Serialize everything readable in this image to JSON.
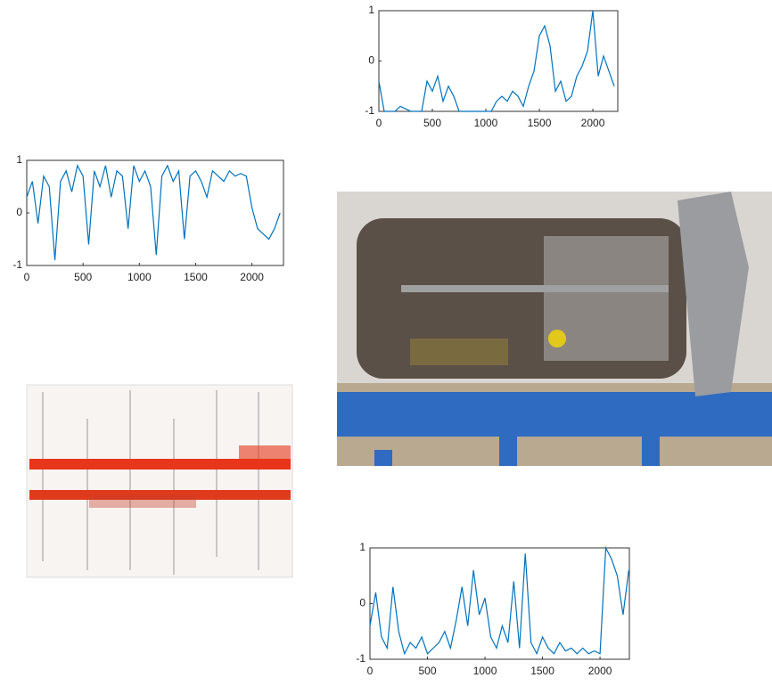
{
  "chart_data": [
    {
      "type": "line",
      "x": [
        0,
        50,
        100,
        150,
        200,
        250,
        300,
        350,
        400,
        450,
        500,
        550,
        600,
        650,
        700,
        750,
        800,
        850,
        900,
        950,
        1000,
        1050,
        1100,
        1150,
        1200,
        1250,
        1300,
        1350,
        1400,
        1450,
        1500,
        1550,
        1600,
        1650,
        1700,
        1750,
        1800,
        1850,
        1900,
        1950,
        2000,
        2050,
        2100,
        2150,
        2200
      ],
      "series": [
        {
          "color": "#0072bd",
          "values": [
            -0.4,
            -1,
            -1,
            -1,
            -0.9,
            -0.95,
            -1,
            -1,
            -1,
            -0.4,
            -0.6,
            -0.3,
            -0.8,
            -0.5,
            -0.7,
            -1,
            -1,
            -1,
            -1,
            -1,
            -1,
            -1,
            -0.8,
            -0.7,
            -0.8,
            -0.6,
            -0.7,
            -0.9,
            -0.5,
            -0.2,
            0.5,
            0.7,
            0.3,
            -0.6,
            -0.4,
            -0.8,
            -0.7,
            -0.3,
            -0.1,
            0.2,
            1,
            -0.3,
            0.1,
            -0.2,
            -0.5
          ]
        }
      ],
      "xlim": [
        0,
        2233
      ],
      "ylim": [
        -1,
        1
      ],
      "xticks": [
        0,
        500,
        1000,
        1500,
        2000
      ],
      "yticks": [
        -1,
        0,
        1
      ]
    },
    {
      "type": "line",
      "x": [
        0,
        50,
        100,
        150,
        200,
        250,
        300,
        350,
        400,
        450,
        500,
        550,
        600,
        650,
        700,
        750,
        800,
        850,
        900,
        950,
        1000,
        1050,
        1100,
        1150,
        1200,
        1250,
        1300,
        1350,
        1400,
        1450,
        1500,
        1550,
        1600,
        1650,
        1700,
        1750,
        1800,
        1850,
        1900,
        1950,
        2000,
        2050,
        2100,
        2150,
        2200,
        2250
      ],
      "series": [
        {
          "color": "#0072bd",
          "values": [
            0.3,
            0.6,
            -0.2,
            0.7,
            0.5,
            -0.9,
            0.6,
            0.8,
            0.4,
            0.9,
            0.7,
            -0.6,
            0.8,
            0.5,
            0.9,
            0.3,
            0.8,
            0.7,
            -0.3,
            0.9,
            0.6,
            0.8,
            0.5,
            -0.8,
            0.7,
            0.9,
            0.6,
            0.8,
            -0.5,
            0.7,
            0.8,
            0.6,
            0.3,
            0.8,
            0.7,
            0.6,
            0.8,
            0.7,
            0.75,
            0.7,
            0.1,
            -0.3,
            -0.4,
            -0.5,
            -0.3,
            0.0
          ]
        }
      ],
      "xlim": [
        0,
        2280
      ],
      "ylim": [
        -1,
        1
      ],
      "xticks": [
        0,
        500,
        1000,
        1500,
        2000
      ],
      "yticks": [
        -1,
        0,
        1
      ]
    },
    {
      "type": "line",
      "x": [
        0,
        50,
        100,
        150,
        200,
        250,
        300,
        350,
        400,
        450,
        500,
        550,
        600,
        650,
        700,
        750,
        800,
        850,
        900,
        950,
        1000,
        1050,
        1100,
        1150,
        1200,
        1250,
        1300,
        1350,
        1400,
        1450,
        1500,
        1550,
        1600,
        1650,
        1700,
        1750,
        1800,
        1850,
        1900,
        1950,
        2000,
        2050,
        2100,
        2150,
        2200,
        2250
      ],
      "series": [
        {
          "color": "#0072bd",
          "values": [
            -0.4,
            0.2,
            -0.6,
            -0.8,
            0.3,
            -0.5,
            -0.9,
            -0.7,
            -0.8,
            -0.6,
            -0.9,
            -0.8,
            -0.7,
            -0.5,
            -0.8,
            -0.3,
            0.3,
            -0.4,
            0.6,
            -0.2,
            0.1,
            -0.6,
            -0.8,
            -0.4,
            -0.7,
            0.4,
            -0.8,
            0.9,
            -0.7,
            -0.9,
            -0.6,
            -0.8,
            -0.9,
            -0.7,
            -0.85,
            -0.8,
            -0.9,
            -0.8,
            -0.9,
            -0.85,
            -0.9,
            1,
            0.8,
            0.5,
            -0.2,
            0.6
          ]
        }
      ],
      "xlim": [
        0,
        2255
      ],
      "ylim": [
        -1,
        1
      ],
      "xticks": [
        0,
        500,
        1000,
        1500,
        2000
      ],
      "yticks": [
        -1,
        0,
        1
      ]
    }
  ]
}
